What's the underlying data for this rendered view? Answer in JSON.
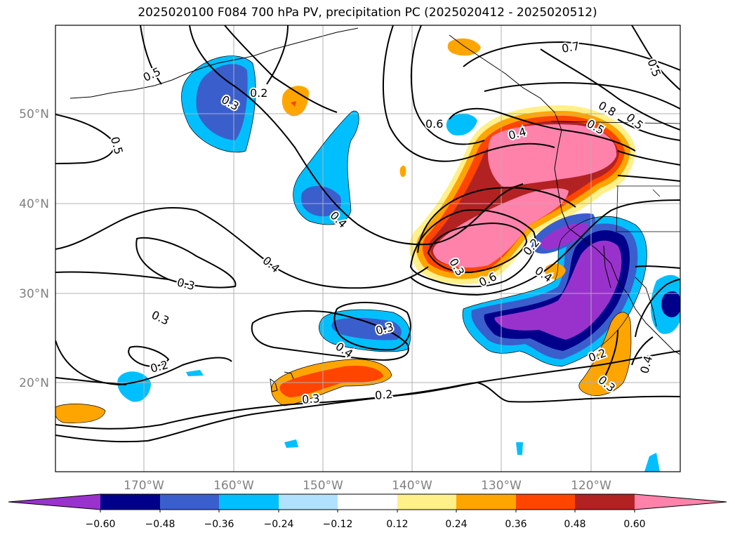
{
  "title": "2025020100 F084 700 hPa PV, precipitation PC (2025020412 - 2025020512)",
  "map": {
    "lat_labels": [
      "50°N",
      "40°N",
      "30°N",
      "20°N"
    ],
    "lon_labels": [
      "170°W",
      "160°W",
      "150°W",
      "140°W",
      "130°W",
      "120°W"
    ],
    "contour_labels": [
      "0.5",
      "0.2",
      "0.3",
      "0.5",
      "0.7",
      "0.6",
      "0.4",
      "0.8",
      "0.5",
      "0.4",
      "0.4",
      "0.3",
      "0.3",
      "0.2",
      "0.3",
      "0.4",
      "0.3",
      "0.2",
      "0.2",
      "0.3",
      "0.6",
      "0.4",
      "0.2",
      "0.3",
      "0.4",
      "0.5",
      "0.5"
    ]
  },
  "colorbar": {
    "tick_labels": [
      "−0.60",
      "−0.48",
      "−0.36",
      "−0.24",
      "−0.12",
      "0.12",
      "0.24",
      "0.36",
      "0.48",
      "0.60"
    ],
    "colors": [
      "#9932cc",
      "#00008b",
      "#3a5fcd",
      "#00bfff",
      "#b0e2ff",
      "#ffffff",
      "#fff08a",
      "#ffa500",
      "#ff4500",
      "#b22222",
      "#ff82ab"
    ]
  }
}
